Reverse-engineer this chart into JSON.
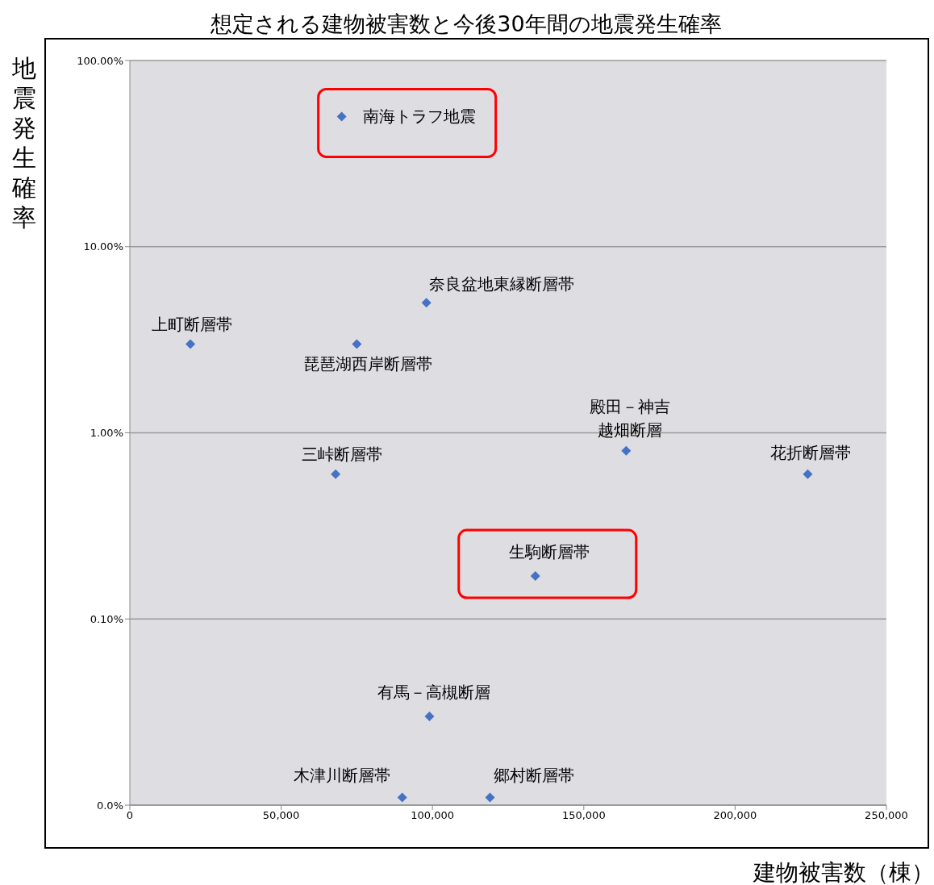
{
  "chart_data": {
    "type": "scatter",
    "title": "想定される建物被害数と今後30年間の地震発生確率",
    "xlabel": "建物被害数（棟）",
    "ylabel": "地震発生確率",
    "x": [
      70000,
      20000,
      75000,
      98000,
      164000,
      224000,
      68000,
      134000,
      99000,
      90000,
      119000
    ],
    "series": [
      {
        "color": "#4472c4",
        "values": [
          50,
          3,
          3,
          5,
          0.8,
          0.6,
          0.6,
          0.17,
          0.03,
          0.011,
          0.011
        ]
      }
    ],
    "marker": "diamond",
    "log": "y",
    "grid": "y",
    "xlim": [
      0,
      250000
    ],
    "xticks": [
      0,
      {
        "value": 50000,
        "label": "50,000"
      },
      {
        "value": 100000,
        "label": "100,000"
      },
      {
        "value": 150000,
        "label": "150,000"
      },
      {
        "value": 200000,
        "label": "200,000"
      },
      {
        "value": 250000,
        "label": "250,000"
      }
    ],
    "ylim": [
      0.01,
      100
    ],
    "yticks": [
      {
        "value": 0.01,
        "label": "0.0%"
      },
      {
        "value": 0.1,
        "label": "0.10%"
      },
      {
        "value": 1,
        "label": "1.00%"
      },
      {
        "value": 10,
        "label": "10.00%"
      },
      {
        "value": 100,
        "label": "100.00%"
      }
    ],
    "annotations": [
      {
        "text": "南海トラフ地震",
        "x": 70000,
        "y": 50
      },
      {
        "text": "上町断層帯",
        "x": 20000,
        "y": 3
      },
      {
        "text": "琵琶湖西岸断層帯",
        "x": 75000,
        "y": 3
      },
      {
        "text": "奈良盆地東縁断層帯",
        "x": 98000,
        "y": 5
      },
      {
        "text": "殿田－神吉越畑断層",
        "x": 164000,
        "y": 0.8
      },
      {
        "text": "花折断層帯",
        "x": 224000,
        "y": 0.6
      },
      {
        "text": "三峠断層帯",
        "x": 68000,
        "y": 0.6
      },
      {
        "text": "生駒断層帯",
        "x": 134000,
        "y": 0.17
      },
      {
        "text": "有馬－高槻断層",
        "x": 99000,
        "y": 0.03
      },
      {
        "text": "木津川断層帯",
        "x": 90000,
        "y": 0.011
      },
      {
        "text": "郷村断層帯",
        "x": 119000,
        "y": 0.011
      }
    ]
  }
}
